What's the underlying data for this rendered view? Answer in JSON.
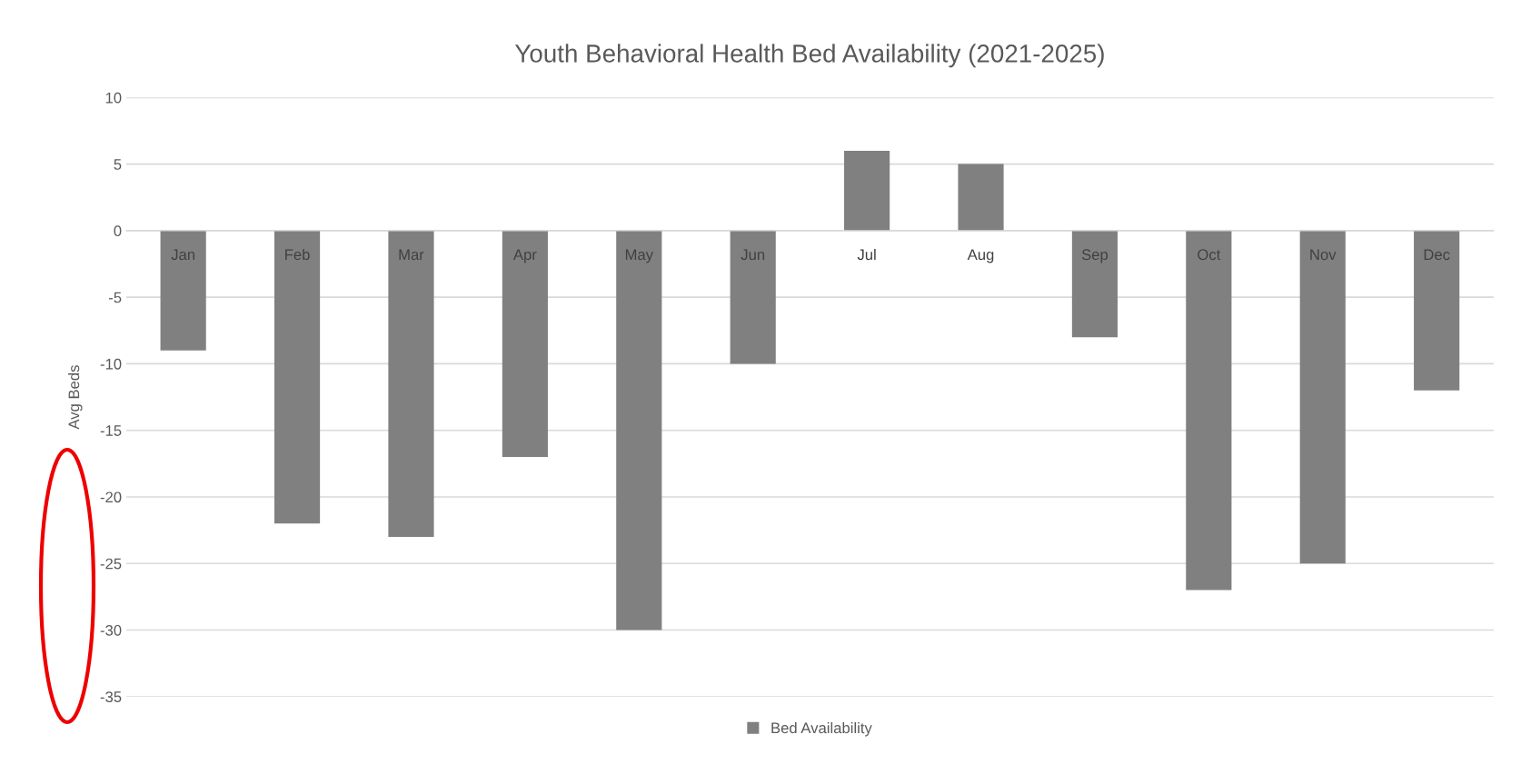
{
  "chart_data": {
    "type": "bar",
    "title": "Youth Behavioral Health Bed Availability (2021-2025)",
    "ylabel": "Avg Beds",
    "categories": [
      "Jan",
      "Feb",
      "Mar",
      "Apr",
      "May",
      "Jun",
      "Jul",
      "Aug",
      "Sep",
      "Oct",
      "Nov",
      "Dec"
    ],
    "series": [
      {
        "name": "Bed Availability",
        "color": "#808080",
        "values": [
          -9,
          -22,
          -23,
          -17,
          -30,
          -10,
          6,
          5,
          -8,
          -27,
          -25,
          -12
        ]
      }
    ],
    "ylim": [
      -35,
      10
    ],
    "yticks": [
      -35,
      -30,
      -25,
      -20,
      -15,
      -10,
      -5,
      0,
      5,
      10
    ],
    "grid": "y",
    "legend": "bottom"
  }
}
